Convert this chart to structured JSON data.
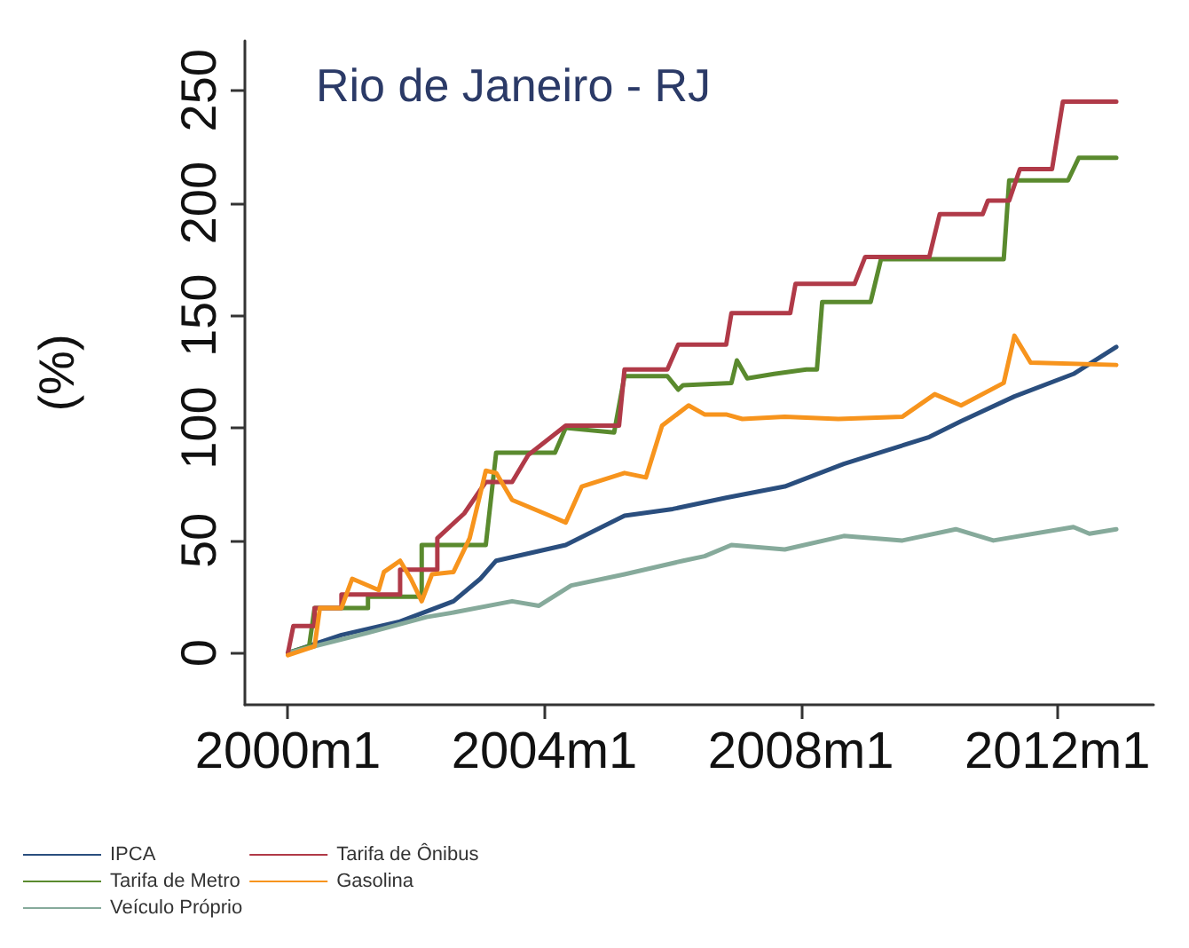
{
  "chart_data": {
    "type": "line",
    "title": "Rio de Janeiro - RJ",
    "ylabel": "(%)",
    "xlim": [
      "1999-05",
      "2013-07"
    ],
    "ylim": [
      -23,
      272
    ],
    "xticks": [
      {
        "value": "2000-01",
        "label": "2000m1"
      },
      {
        "value": "2004-01",
        "label": "2004m1"
      },
      {
        "value": "2008-01",
        "label": "2008m1"
      },
      {
        "value": "2012-01",
        "label": "2012m1"
      }
    ],
    "yticks": [
      0,
      50,
      100,
      150,
      200,
      250
    ],
    "grid": false,
    "legend": "bottom",
    "marker": "none",
    "line_style": "solid",
    "series": [
      {
        "name": "IPCA",
        "color": "#2a4e7e",
        "x": [
          "2000-01",
          "2000-11",
          "2001-10",
          "2002-08",
          "2003-01",
          "2003-04",
          "2004-05",
          "2005-04",
          "2006-01",
          "2006-11",
          "2007-10",
          "2008-09",
          "2010-01",
          "2010-07",
          "2011-05",
          "2012-04",
          "2012-12"
        ],
        "values": [
          0,
          8,
          14,
          23,
          33,
          41,
          48,
          61,
          64,
          69,
          74,
          84,
          96,
          103,
          114,
          124,
          136
        ]
      },
      {
        "name": "Tarifa de Metro",
        "color": "#5a8a2e",
        "x": [
          "2000-01",
          "2000-05",
          "2000-06",
          "2001-04",
          "2001-04",
          "2002-02",
          "2002-02",
          "2003-02",
          "2003-04",
          "2004-03",
          "2004-05",
          "2005-02",
          "2005-04",
          "2005-12",
          "2006-02",
          "2006-03",
          "2006-12",
          "2007-01",
          "2007-03",
          "2007-08",
          "2008-02",
          "2008-04",
          "2008-05",
          "2009-02",
          "2009-04",
          "2011-03",
          "2011-04",
          "2012-03",
          "2012-05",
          "2012-12"
        ],
        "values": [
          0,
          3,
          20,
          20,
          25,
          25,
          48,
          48,
          89,
          89,
          100,
          98,
          123,
          123,
          117,
          119,
          120,
          130,
          122,
          124,
          126,
          126,
          156,
          156,
          175,
          175,
          210,
          210,
          220,
          220
        ]
      },
      {
        "name": "Veículo Próprio",
        "color": "#86aa9b",
        "x": [
          "2000-01",
          "2001-04",
          "2002-03",
          "2002-08",
          "2003-07",
          "2003-12",
          "2004-06",
          "2005-04",
          "2006-03",
          "2006-07",
          "2006-12",
          "2007-10",
          "2008-09",
          "2009-08",
          "2010-06",
          "2011-01",
          "2012-04",
          "2012-07",
          "2012-12"
        ],
        "values": [
          0,
          9,
          16,
          18,
          23,
          21,
          30,
          35,
          41,
          43,
          48,
          46,
          52,
          50,
          55,
          50,
          56,
          53,
          55
        ]
      },
      {
        "name": "Tarifa de Ônibus",
        "color": "#b03a48",
        "x": [
          "2000-01",
          "2000-02",
          "2000-06",
          "2000-06",
          "2000-11",
          "2000-11",
          "2001-10",
          "2001-10",
          "2002-05",
          "2002-05",
          "2002-10",
          "2003-02",
          "2003-07",
          "2003-10",
          "2004-05",
          "2005-03",
          "2005-04",
          "2005-12",
          "2006-02",
          "2006-11",
          "2006-12",
          "2007-11",
          "2007-12",
          "2008-11",
          "2009-01",
          "2010-01",
          "2010-03",
          "2010-11",
          "2010-12",
          "2011-04",
          "2011-06",
          "2011-12",
          "2012-02",
          "2012-12"
        ],
        "values": [
          0,
          12,
          12,
          20,
          20,
          26,
          26,
          37,
          37,
          51,
          62,
          76,
          76,
          88,
          101,
          101,
          126,
          126,
          137,
          137,
          151,
          151,
          164,
          164,
          176,
          176,
          195,
          195,
          201,
          201,
          215,
          215,
          245,
          245
        ]
      },
      {
        "name": "Gasolina",
        "color": "#f7941d",
        "x": [
          "2000-01",
          "2000-06",
          "2000-07",
          "2000-11",
          "2001-01",
          "2001-06",
          "2001-07",
          "2001-10",
          "2001-12",
          "2002-02",
          "2002-04",
          "2002-08",
          "2002-11",
          "2003-02",
          "2003-04",
          "2003-07",
          "2004-02",
          "2004-05",
          "2004-08",
          "2005-04",
          "2005-08",
          "2005-11",
          "2006-04",
          "2006-07",
          "2006-11",
          "2007-02",
          "2007-10",
          "2008-08",
          "2009-08",
          "2010-02",
          "2010-07",
          "2011-03",
          "2011-05",
          "2011-08",
          "2012-12"
        ],
        "values": [
          -1,
          3,
          20,
          20,
          33,
          28,
          36,
          41,
          33,
          23,
          35,
          36,
          51,
          81,
          80,
          68,
          61,
          58,
          74,
          80,
          78,
          101,
          110,
          106,
          106,
          104,
          105,
          104,
          105,
          115,
          110,
          120,
          141,
          129,
          128
        ]
      }
    ]
  }
}
